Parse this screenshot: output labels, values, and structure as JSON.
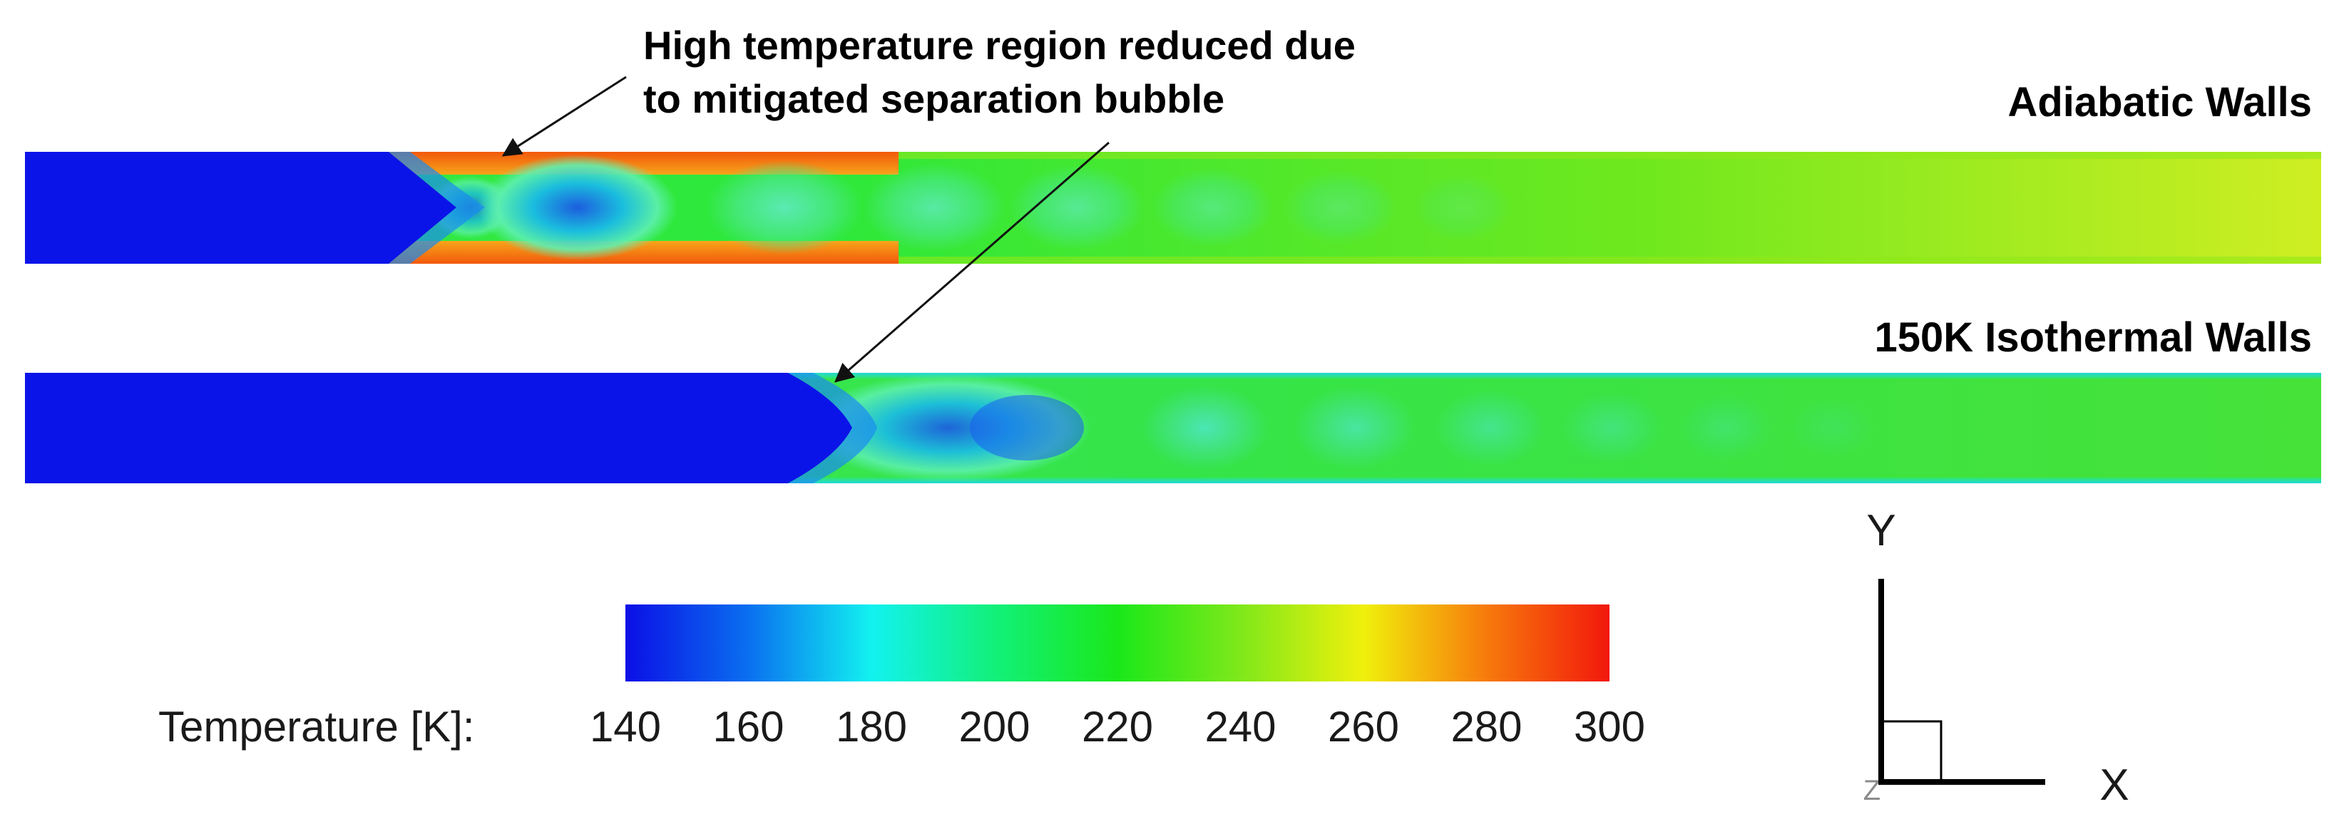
{
  "annotation": {
    "line1": "High temperature region reduced due",
    "line2": "to mitigated separation bubble"
  },
  "panels": [
    {
      "label": "Adiabatic Walls"
    },
    {
      "label": "150K Isothermal Walls"
    }
  ],
  "colorbar": {
    "title": "Temperature [K]:",
    "min": 140,
    "max": 300,
    "ticks": [
      "140",
      "160",
      "180",
      "200",
      "220",
      "240",
      "260",
      "280",
      "300"
    ],
    "colors": [
      "#0b0fe6",
      "#0a6ff0",
      "#12f2f0",
      "#12f07a",
      "#1ae81a",
      "#7fe81a",
      "#f0f00c",
      "#f77a0c",
      "#f2180c"
    ]
  },
  "triad": {
    "y_label": "Y",
    "x_label": "X",
    "z_label": "Z"
  }
}
